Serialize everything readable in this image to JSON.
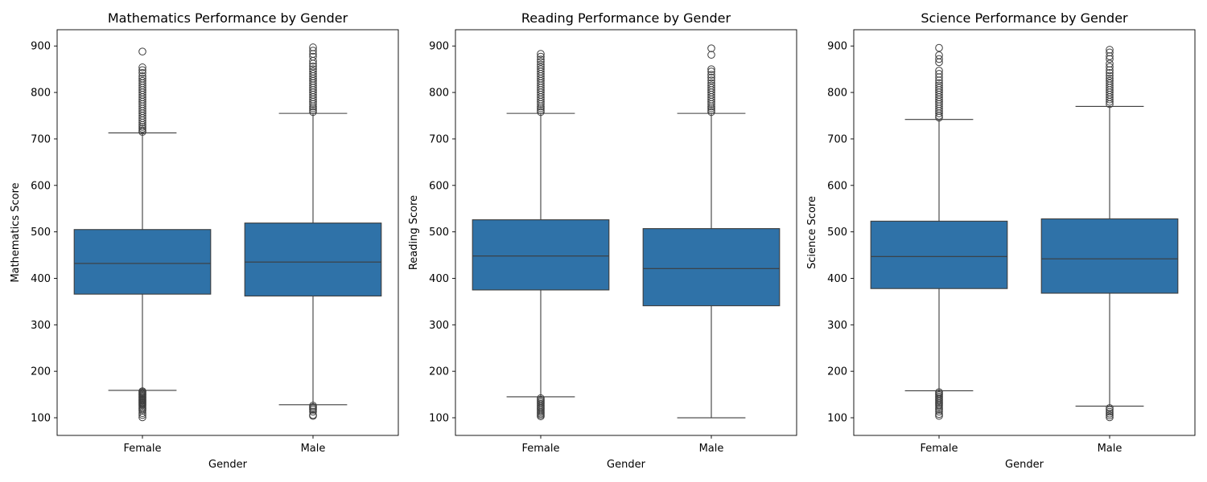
{
  "chart_data": [
    {
      "type": "box",
      "title": "Mathematics Performance by Gender",
      "xlabel": "Gender",
      "ylabel": "Mathematics Score",
      "categories": [
        "Female",
        "Male"
      ],
      "ylim": [
        62,
        935
      ],
      "yticks": [
        "100",
        "200",
        "300",
        "400",
        "500",
        "600",
        "700",
        "800",
        "900"
      ],
      "color": "#2f72a8",
      "boxes": [
        {
          "category": "Female",
          "whisker_low": 159,
          "q1": 366,
          "median": 432,
          "q3": 505,
          "whisker_high": 713,
          "outliers_low": [
            101,
            106,
            110,
            115,
            118,
            121,
            124,
            127,
            129,
            131,
            133,
            135,
            137,
            139,
            141,
            143,
            145,
            147,
            149,
            151,
            153,
            155,
            157
          ],
          "outliers_high": [
            888,
            854,
            848,
            842,
            835,
            830,
            825,
            820,
            815,
            810,
            805,
            800,
            795,
            790,
            785,
            780,
            775,
            770,
            765,
            760,
            755,
            750,
            745,
            740,
            735,
            730,
            726,
            722,
            718,
            715
          ]
        },
        {
          "category": "Male",
          "whisker_low": 128,
          "q1": 362,
          "median": 435,
          "q3": 519,
          "whisker_high": 755,
          "outliers_low": [
            104,
            106,
            113,
            117,
            120,
            123,
            126
          ],
          "outliers_high": [
            897,
            890,
            883,
            877,
            868,
            862,
            856,
            850,
            845,
            840,
            835,
            830,
            825,
            820,
            815,
            810,
            805,
            800,
            795,
            790,
            785,
            780,
            775,
            770,
            766,
            762,
            758
          ]
        }
      ]
    },
    {
      "type": "box",
      "title": "Reading Performance by Gender",
      "xlabel": "Gender",
      "ylabel": "Reading Score",
      "categories": [
        "Female",
        "Male"
      ],
      "ylim": [
        62,
        935
      ],
      "yticks": [
        "100",
        "200",
        "300",
        "400",
        "500",
        "600",
        "700",
        "800",
        "900"
      ],
      "color": "#2f72a8",
      "boxes": [
        {
          "category": "Female",
          "whisker_low": 145,
          "q1": 375,
          "median": 448,
          "q3": 526,
          "whisker_high": 755,
          "outliers_low": [
            103,
            106,
            109,
            112,
            115,
            118,
            121,
            124,
            127,
            130,
            133,
            136,
            139,
            142
          ],
          "outliers_high": [
            883,
            877,
            871,
            866,
            860,
            855,
            850,
            845,
            840,
            835,
            830,
            825,
            820,
            815,
            810,
            805,
            800,
            795,
            790,
            785,
            780,
            775,
            770,
            766,
            762,
            758
          ]
        },
        {
          "category": "Male",
          "whisker_low": 100,
          "q1": 341,
          "median": 421,
          "q3": 507,
          "whisker_high": 755,
          "outliers_low": [],
          "outliers_high": [
            895,
            881,
            850,
            845,
            838,
            832,
            826,
            820,
            815,
            810,
            805,
            800,
            795,
            790,
            785,
            780,
            775,
            770,
            766,
            762,
            758
          ]
        }
      ]
    },
    {
      "type": "box",
      "title": "Science Performance by Gender",
      "xlabel": "Gender",
      "ylabel": "Science Score",
      "categories": [
        "Female",
        "Male"
      ],
      "ylim": [
        62,
        935
      ],
      "yticks": [
        "100",
        "200",
        "300",
        "400",
        "500",
        "600",
        "700",
        "800",
        "900"
      ],
      "color": "#2f72a8",
      "boxes": [
        {
          "category": "Female",
          "whisker_low": 158,
          "q1": 378,
          "median": 447,
          "q3": 523,
          "whisker_high": 742,
          "outliers_low": [
            104,
            108,
            113,
            117,
            121,
            125,
            128,
            131,
            134,
            137,
            140,
            143,
            146,
            149,
            152,
            155
          ],
          "outliers_high": [
            896,
            880,
            872,
            865,
            847,
            840,
            833,
            826,
            820,
            815,
            810,
            805,
            800,
            795,
            790,
            785,
            780,
            775,
            770,
            765,
            760,
            755,
            750,
            746
          ]
        },
        {
          "category": "Male",
          "whisker_low": 125,
          "q1": 368,
          "median": 442,
          "q3": 528,
          "whisker_high": 770,
          "outliers_low": [
            101,
            105,
            109,
            113,
            117,
            121
          ],
          "outliers_high": [
            892,
            886,
            878,
            872,
            862,
            855,
            848,
            842,
            836,
            830,
            825,
            820,
            815,
            810,
            805,
            800,
            795,
            790,
            785,
            780,
            775
          ]
        }
      ]
    }
  ]
}
